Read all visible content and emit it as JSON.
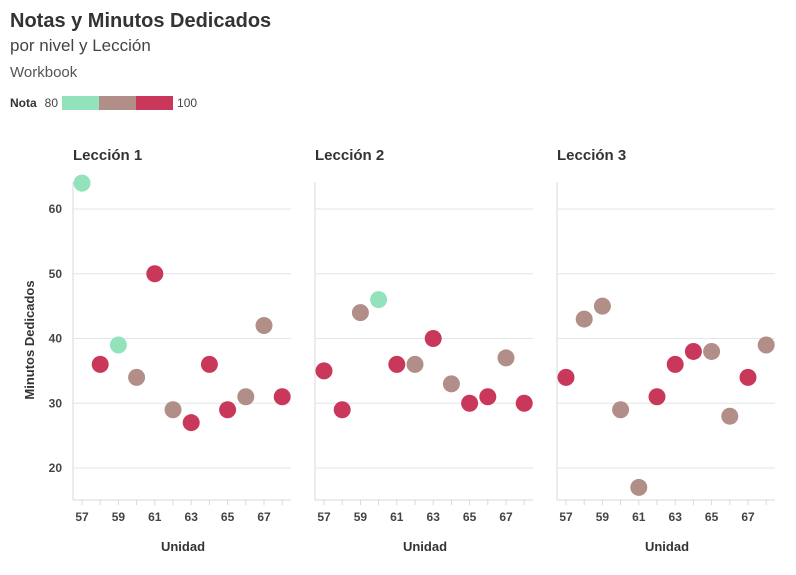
{
  "title": "Notas y Minutos Dedicados",
  "subtitle": "por nivel y Lección",
  "caption": "Workbook",
  "legend": {
    "title": "Nota",
    "min_label": "80",
    "max_label": "100",
    "colors": [
      "#92e3bb",
      "#b28e88",
      "#c9375a"
    ]
  },
  "chart_data": {
    "type": "scatter",
    "ylabel": "Minutos Dedicados",
    "xlabel": "Unidad",
    "ylim": [
      15,
      67
    ],
    "y_ticks": [
      "20",
      "30",
      "40",
      "50",
      "60"
    ],
    "x_ticks": [
      "57",
      "59",
      "61",
      "63",
      "65",
      "67"
    ],
    "panels": [
      {
        "name": "Lección 1",
        "points": [
          {
            "x": 57,
            "y": 64,
            "level": "low"
          },
          {
            "x": 58,
            "y": 36,
            "level": "high"
          },
          {
            "x": 59,
            "y": 39,
            "level": "low"
          },
          {
            "x": 60,
            "y": 34,
            "level": "mid"
          },
          {
            "x": 61,
            "y": 50,
            "level": "high"
          },
          {
            "x": 62,
            "y": 29,
            "level": "mid"
          },
          {
            "x": 63,
            "y": 27,
            "level": "high"
          },
          {
            "x": 64,
            "y": 36,
            "level": "high"
          },
          {
            "x": 65,
            "y": 29,
            "level": "high"
          },
          {
            "x": 66,
            "y": 31,
            "level": "mid"
          },
          {
            "x": 67,
            "y": 42,
            "level": "mid"
          },
          {
            "x": 68,
            "y": 31,
            "level": "high"
          }
        ]
      },
      {
        "name": "Lección 2",
        "points": [
          {
            "x": 57,
            "y": 35,
            "level": "high"
          },
          {
            "x": 58,
            "y": 29,
            "level": "high"
          },
          {
            "x": 59,
            "y": 44,
            "level": "mid"
          },
          {
            "x": 60,
            "y": 46,
            "level": "low"
          },
          {
            "x": 61,
            "y": 36,
            "level": "high"
          },
          {
            "x": 62,
            "y": 36,
            "level": "mid"
          },
          {
            "x": 63,
            "y": 40,
            "level": "high"
          },
          {
            "x": 64,
            "y": 33,
            "level": "mid"
          },
          {
            "x": 65,
            "y": 30,
            "level": "high"
          },
          {
            "x": 66,
            "y": 31,
            "level": "high"
          },
          {
            "x": 67,
            "y": 37,
            "level": "mid"
          },
          {
            "x": 68,
            "y": 30,
            "level": "high"
          }
        ]
      },
      {
        "name": "Lección 3",
        "points": [
          {
            "x": 57,
            "y": 34,
            "level": "high"
          },
          {
            "x": 58,
            "y": 43,
            "level": "mid"
          },
          {
            "x": 59,
            "y": 45,
            "level": "mid"
          },
          {
            "x": 60,
            "y": 29,
            "level": "mid"
          },
          {
            "x": 61,
            "y": 17,
            "level": "mid"
          },
          {
            "x": 62,
            "y": 31,
            "level": "high"
          },
          {
            "x": 63,
            "y": 36,
            "level": "high"
          },
          {
            "x": 64,
            "y": 38,
            "level": "high"
          },
          {
            "x": 65,
            "y": 38,
            "level": "mid"
          },
          {
            "x": 66,
            "y": 28,
            "level": "mid"
          },
          {
            "x": 67,
            "y": 34,
            "level": "high"
          },
          {
            "x": 68,
            "y": 39,
            "level": "mid"
          }
        ]
      }
    ]
  }
}
